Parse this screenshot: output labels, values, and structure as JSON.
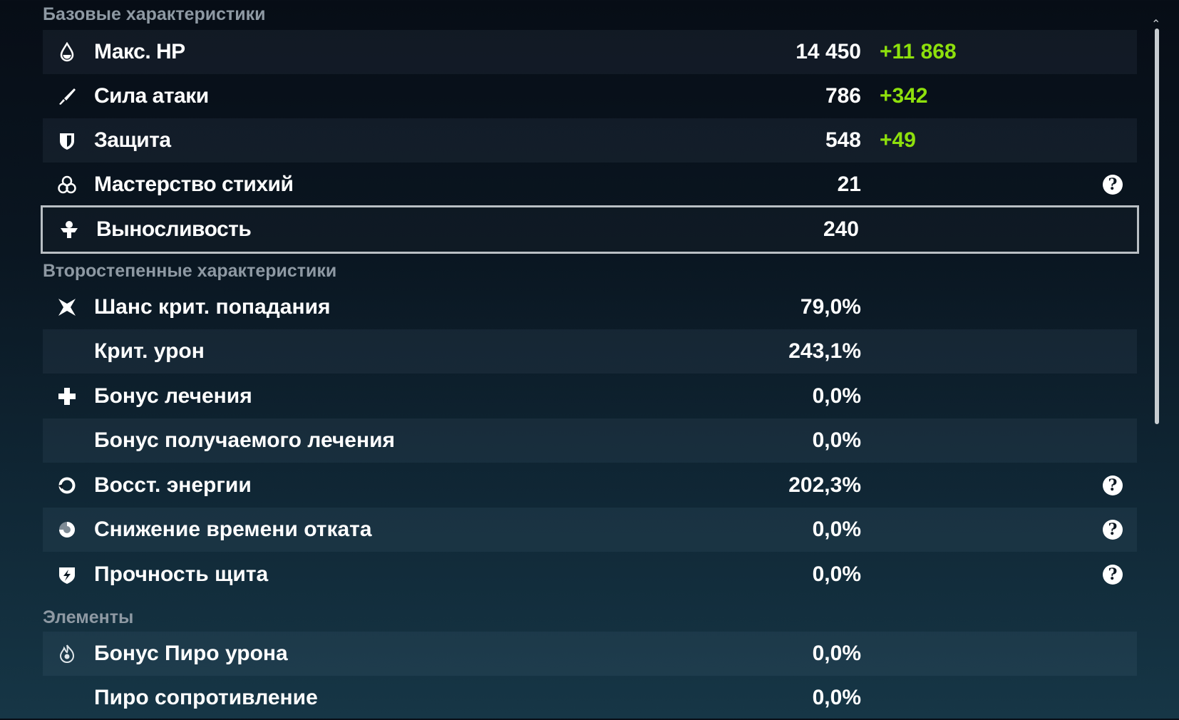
{
  "sections": {
    "basic": {
      "title": "Базовые характеристики",
      "rows": [
        {
          "icon": "hp-drop-icon",
          "label": "Макс. HP",
          "value": "14 450",
          "bonus": "+11 868"
        },
        {
          "icon": "sword-icon",
          "label": "Сила атаки",
          "value": "786",
          "bonus": "+342"
        },
        {
          "icon": "shield-icon",
          "label": "Защита",
          "value": "548",
          "bonus": "+49"
        },
        {
          "icon": "elemental-mastery-icon",
          "label": "Мастерство стихий",
          "value": "21",
          "help": "?"
        },
        {
          "icon": "stamina-icon",
          "label": "Выносливость",
          "value": "240",
          "selected": true
        }
      ]
    },
    "secondary": {
      "title": "Второстепенные характеристики",
      "rows": [
        {
          "icon": "crit-star-icon",
          "label": "Шанс крит. попадания",
          "value": "79,0%"
        },
        {
          "icon": "",
          "label": "Крит. урон",
          "value": "243,1%"
        },
        {
          "icon": "healing-cross-icon",
          "label": "Бонус лечения",
          "value": "0,0%"
        },
        {
          "icon": "",
          "label": "Бонус получаемого лечения",
          "value": "0,0%"
        },
        {
          "icon": "energy-recharge-icon",
          "label": "Восст. энергии",
          "value": "202,3%",
          "help": "?"
        },
        {
          "icon": "cooldown-icon",
          "label": "Снижение времени отката",
          "value": "0,0%",
          "help": "?"
        },
        {
          "icon": "shield-strength-icon",
          "label": "Прочность щита",
          "value": "0,0%",
          "help": "?"
        }
      ]
    },
    "elements": {
      "title": "Элементы",
      "rows": [
        {
          "icon": "pyro-icon",
          "label": "Бонус Пиро урона",
          "value": "0,0%"
        },
        {
          "icon": "",
          "label": "Пиро сопротивление",
          "value": "0,0%"
        }
      ]
    }
  },
  "colors": {
    "bonus": "#8ee00c",
    "header": "#8e99a3",
    "selected_border": "#b9bfc4"
  }
}
